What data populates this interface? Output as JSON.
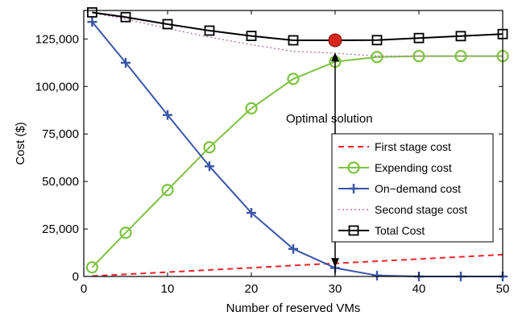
{
  "chart_data": {
    "type": "line",
    "xlabel": "Number of reserved VMs",
    "ylabel": "Cost ($)",
    "xlim": [
      0,
      50
    ],
    "ylim": [
      0,
      140000
    ],
    "xticks": [
      0,
      10,
      20,
      30,
      40,
      50
    ],
    "xtick_labels": [
      "0",
      "10",
      "20",
      "30",
      "40",
      "50"
    ],
    "yticks": [
      0,
      25000,
      50000,
      75000,
      100000,
      125000
    ],
    "ytick_labels": [
      "0",
      "25,000",
      "50,000",
      "75,000",
      "100,000",
      "125,000"
    ],
    "grid": false,
    "legend_position": "bottom-right",
    "x": [
      1,
      5,
      10,
      15,
      20,
      25,
      30,
      35,
      40,
      45,
      50
    ],
    "series": [
      {
        "name": "First stage cost",
        "style": "dashed",
        "color": "#e8262b",
        "marker": "none",
        "values": [
          230,
          1150,
          2300,
          3450,
          4600,
          5750,
          6900,
          8050,
          9200,
          10350,
          11500
        ]
      },
      {
        "name": "Expending cost",
        "style": "solid",
        "color": "#7dc242",
        "marker": "circle",
        "values": [
          4800,
          23000,
          45500,
          68000,
          88500,
          104000,
          113000,
          115500,
          116000,
          116000,
          116000
        ]
      },
      {
        "name": "On−demand cost",
        "style": "solid",
        "color": "#3a56a8",
        "marker": "plus",
        "values": [
          134000,
          112500,
          85000,
          58000,
          33500,
          14500,
          4500,
          500,
          0,
          0,
          0
        ]
      },
      {
        "name": "Second stage cost",
        "style": "dotted",
        "color": "#b573b0",
        "marker": "none",
        "values": [
          138800,
          135500,
          130500,
          126000,
          122000,
          118500,
          117500,
          116000,
          116000,
          116000,
          116000
        ]
      },
      {
        "name": "Total Cost",
        "style": "solid",
        "color": "#000000",
        "marker": "square",
        "values": [
          139000,
          136500,
          132800,
          129400,
          126600,
          124300,
          124300,
          124400,
          125500,
          126500,
          127600
        ]
      }
    ],
    "optimal_point": {
      "x": 30,
      "y": 124300,
      "color": "#d9261c"
    },
    "annotation": {
      "text": "Optimal solution",
      "arrow_x": 30,
      "arrow_y_from": 117000,
      "arrow_y_to": 5000
    }
  }
}
